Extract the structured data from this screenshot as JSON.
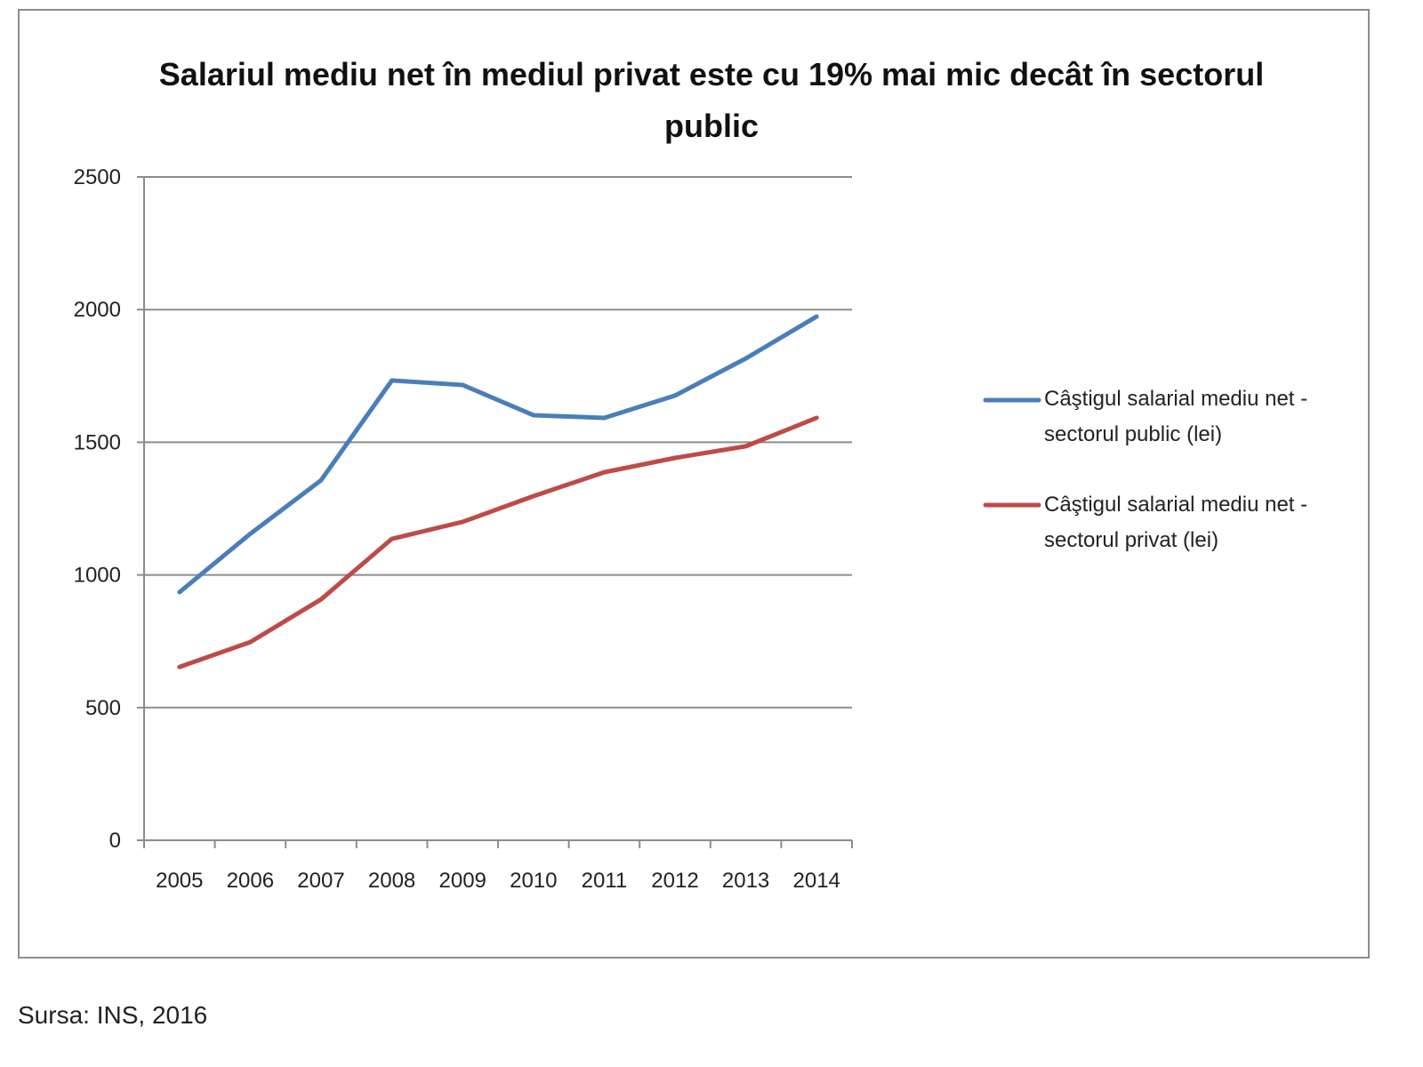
{
  "chart_data": {
    "type": "line",
    "title": "Salariul mediu net în mediul privat este cu  19% mai mic decât în sectorul public",
    "xlabel": "",
    "ylabel": "",
    "categories": [
      "2005",
      "2006",
      "2007",
      "2008",
      "2009",
      "2010",
      "2011",
      "2012",
      "2013",
      "2014"
    ],
    "ylim": [
      0,
      2500
    ],
    "yticks": [
      0,
      500,
      1000,
      1500,
      2000,
      2500
    ],
    "grid": true,
    "legend_position": "right",
    "series": [
      {
        "name": "Câştigul salarial mediu net - sectorul public (lei)",
        "color": "#4a7ebb",
        "values": [
          935,
          1155,
          1357,
          1733,
          1716,
          1602,
          1592,
          1676,
          1816,
          1974
        ]
      },
      {
        "name": "Câştigul salarial mediu net - sectorul privat (lei)",
        "color": "#be4b48",
        "values": [
          653,
          747,
          908,
          1136,
          1200,
          1297,
          1387,
          1441,
          1485,
          1592
        ]
      }
    ]
  },
  "legend": {
    "public_line1": "Câştigul salarial mediu net -",
    "public_line2": "sectorul public (lei)",
    "private_line1": "Câştigul salarial mediu net -",
    "private_line2": "sectorul privat (lei)"
  },
  "source": "Sursa: INS, 2016"
}
